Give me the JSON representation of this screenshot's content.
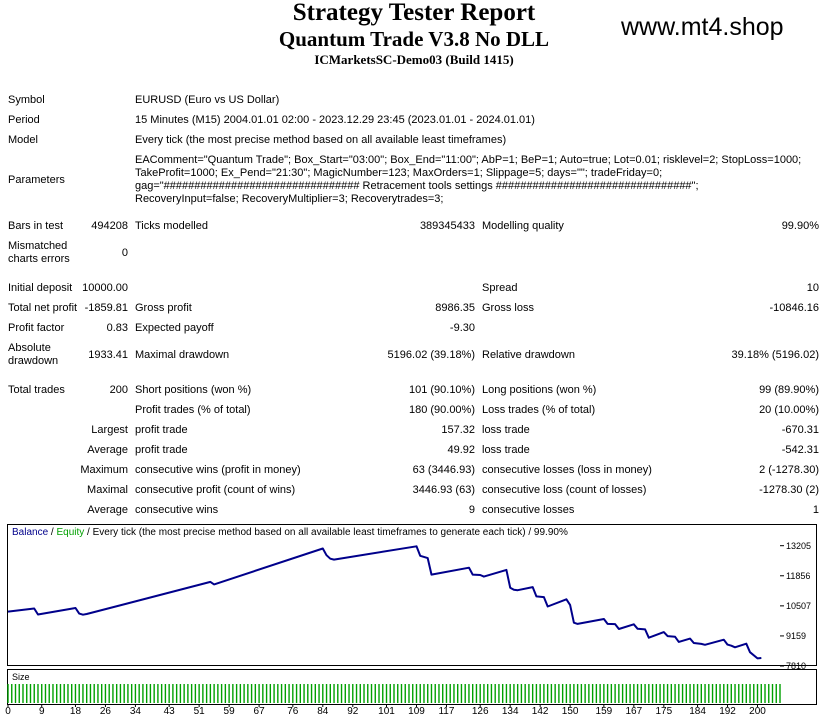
{
  "header": {
    "title": "Strategy Tester Report",
    "subtitle": "Quantum Trade V3.8 No DLL",
    "server": "ICMarketsSC-Demo03 (Build 1415)",
    "website": "www.mt4.shop"
  },
  "info": {
    "symbol_label": "Symbol",
    "symbol_value": "EURUSD (Euro vs US Dollar)",
    "period_label": "Period",
    "period_value": "15 Minutes (M15) 2004.01.01 02:00 - 2023.12.29 23:45 (2023.01.01 - 2024.01.01)",
    "model_label": "Model",
    "model_value": "Every tick (the most precise method based on all available least timeframes)",
    "parameters_label": "Parameters",
    "parameters_lines": [
      "EAComment=\"Quantum Trade\"; Box_Start=\"03:00\"; Box_End=\"11:00\"; AbP=1; BeP=1; Auto=true; Lot=0.01; risklevel=2; StopLoss=1000;",
      "TakeProfit=1000; Ex_Pend=\"21:30\"; MagicNumber=123; MaxOrders=1; Slippage=5; days=\"\"; tradeFriday=0;",
      "gag=\"################################ Retracement tools settings ################################\";",
      "RecoveryInput=false; RecoveryMultiplier=3; Recoverytrades=3;"
    ]
  },
  "stats": {
    "bars_label": "Bars in test",
    "bars_value": "494208",
    "ticks_label": "Ticks modelled",
    "ticks_value": "389345433",
    "quality_label": "Modelling quality",
    "quality_value": "99.90%",
    "mismatch_label_1": "Mismatched",
    "mismatch_label_2": "charts errors",
    "mismatch_value": "0",
    "deposit_label": "Initial deposit",
    "deposit_value": "10000.00",
    "spread_label": "Spread",
    "spread_value": "10",
    "net_label": "Total net profit",
    "net_value": "-1859.81",
    "gross_profit_label": "Gross profit",
    "gross_profit_value": "8986.35",
    "gross_loss_label": "Gross loss",
    "gross_loss_value": "-10846.16",
    "pf_label": "Profit factor",
    "pf_value": "0.83",
    "payoff_label": "Expected payoff",
    "payoff_value": "-9.30",
    "absdd_label_1": "Absolute",
    "absdd_label_2": "drawdown",
    "absdd_value": "1933.41",
    "maxdd_label": "Maximal drawdown",
    "maxdd_value": "5196.02 (39.18%)",
    "reldd_label": "Relative drawdown",
    "reldd_value": "39.18% (5196.02)",
    "trades_label": "Total trades",
    "trades_value": "200",
    "short_label": "Short positions (won %)",
    "short_value": "101 (90.10%)",
    "long_label": "Long positions (won %)",
    "long_value": "99 (89.90%)",
    "ptrades_label": "Profit trades (% of total)",
    "ptrades_value": "180 (90.00%)",
    "ltrades_label": "Loss trades (% of total)",
    "ltrades_value": "20 (10.00%)",
    "largest_label": "Largest",
    "largest_pt_label": "profit trade",
    "largest_pt_value": "157.32",
    "largest_lt_label": "loss trade",
    "largest_lt_value": "-670.31",
    "average_label": "Average",
    "average_pt_label": "profit trade",
    "average_pt_value": "49.92",
    "average_lt_label": "loss trade",
    "average_lt_value": "-542.31",
    "maximum_label": "Maximum",
    "max_cw_label": "consecutive wins (profit in money)",
    "max_cw_value": "63 (3446.93)",
    "max_cl_label": "consecutive losses (loss in money)",
    "max_cl_value": "2 (-1278.30)",
    "maximal_label": "Maximal",
    "mxl_cp_label": "consecutive profit (count of wins)",
    "mxl_cp_value": "3446.93 (63)",
    "mxl_cl_label": "consecutive loss (count of losses)",
    "mxl_cl_value": "-1278.30 (2)",
    "avg2_label": "Average",
    "avg_cw_label": "consecutive wins",
    "avg_cw_value": "9",
    "avg_cl_label": "consecutive losses",
    "avg_cl_value": "1"
  },
  "chart_data": {
    "type": "line",
    "legend": {
      "balance": "Balance",
      "separator": " / ",
      "equity": "Equity",
      "rest": " / Every tick (the most precise method based on all available least timeframes to generate each tick) / 99.90%"
    },
    "size_label": "Size",
    "colors": {
      "balance": "#00008b",
      "equity": "#00a000",
      "size": "#00a000"
    },
    "ylim": [
      7900,
      13550
    ],
    "yticks": [
      13205,
      11856,
      10507,
      9159,
      7810
    ],
    "xlim": [
      0,
      206
    ],
    "xticks": [
      0,
      9,
      18,
      26,
      34,
      43,
      51,
      59,
      67,
      76,
      84,
      92,
      101,
      109,
      117,
      126,
      134,
      142,
      150,
      159,
      167,
      175,
      184,
      192,
      200
    ],
    "series": [
      {
        "name": "Balance",
        "x": [
          0,
          7,
          8,
          18,
          19,
          20,
          21,
          54,
          55,
          84,
          85,
          86,
          87,
          109,
          110,
          112,
          113,
          123,
          124,
          126,
          127,
          133,
          134,
          135,
          136,
          140,
          141,
          143,
          144,
          149,
          150,
          151,
          152,
          159,
          160,
          162,
          163,
          167,
          168,
          170,
          171,
          175,
          176,
          178,
          179,
          182,
          183,
          185,
          186,
          191,
          192,
          193,
          194,
          197,
          198,
          200,
          201
        ],
        "y": [
          10250,
          10390,
          10120,
          10410,
          10160,
          10110,
          10140,
          11580,
          11470,
          13080,
          12780,
          12620,
          12580,
          13180,
          12750,
          12650,
          11910,
          12220,
          11910,
          11890,
          11820,
          12120,
          11320,
          11230,
          11210,
          11350,
          10930,
          10900,
          10480,
          10800,
          10550,
          9750,
          9700,
          9920,
          9700,
          9690,
          9470,
          9680,
          9480,
          9450,
          9080,
          9330,
          9150,
          9120,
          8890,
          9040,
          8840,
          8800,
          8760,
          8990,
          8770,
          8720,
          8650,
          8810,
          8430,
          8150,
          8170
        ]
      }
    ]
  }
}
